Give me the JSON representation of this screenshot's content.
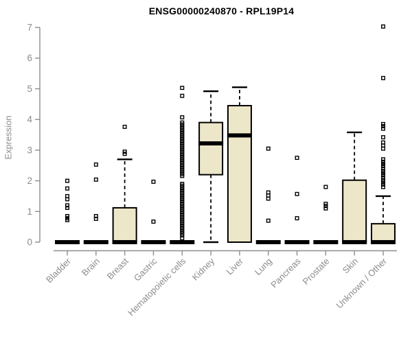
{
  "chart_data": {
    "type": "boxplot",
    "title": "ENSG00000240870 - RPL19P14",
    "ylabel": "Expression",
    "xlabel": "",
    "ylim": [
      0,
      7
    ],
    "yticks": [
      0,
      1,
      2,
      3,
      4,
      5,
      6,
      7
    ],
    "grid": false,
    "legend": "none",
    "categories": [
      "Bladder",
      "Brain",
      "Breast",
      "Gastric",
      "Hematopoietic cells",
      "Kidney",
      "Liver",
      "Lung",
      "Pancreas",
      "Prostate",
      "Skin",
      "Unknown / Other"
    ],
    "boxes": [
      {
        "category": "Bladder",
        "q1": 0,
        "median": 0,
        "q3": 0,
        "whisker_low": 0,
        "whisker_high": 0,
        "outliers": [
          2.0,
          1.75,
          1.5,
          1.4,
          1.2,
          1.12,
          0.85,
          0.78,
          0.72
        ]
      },
      {
        "category": "Brain",
        "q1": 0,
        "median": 0,
        "q3": 0,
        "whisker_low": 0,
        "whisker_high": 0,
        "outliers": [
          2.53,
          2.04,
          0.85,
          0.76
        ]
      },
      {
        "category": "Breast",
        "q1": 0,
        "median": 0,
        "q3": 1.12,
        "whisker_low": 0,
        "whisker_high": 2.7,
        "outliers": [
          3.76,
          2.95,
          2.88
        ]
      },
      {
        "category": "Gastric",
        "q1": 0,
        "median": 0,
        "q3": 0,
        "whisker_low": 0,
        "whisker_high": 0,
        "outliers": [
          1.97,
          0.67
        ]
      },
      {
        "category": "Hematopoietic cells",
        "q1": 0,
        "median": 0,
        "q3": 0,
        "whisker_low": 0,
        "whisker_high": 0,
        "outliers": [
          5.03,
          4.77,
          4.07,
          3.9,
          3.84,
          3.78,
          3.72,
          3.66,
          3.6,
          3.54,
          3.48,
          3.42,
          3.36,
          3.3,
          3.24,
          3.18,
          3.12,
          3.06,
          3.0,
          2.94,
          2.88,
          2.82,
          2.76,
          2.7,
          2.64,
          2.58,
          2.52,
          2.46,
          2.4,
          2.34,
          2.28,
          2.22,
          2.16,
          1.9,
          1.84,
          1.78,
          1.72,
          1.66,
          1.6,
          1.54,
          1.48,
          1.42,
          1.36,
          1.3,
          1.24,
          1.18,
          1.12,
          1.06,
          1.0,
          0.94,
          0.88,
          0.82,
          0.76,
          0.7,
          0.64,
          0.58,
          0.52,
          0.46,
          0.4,
          0.34,
          0.28,
          0.22,
          0.13
        ]
      },
      {
        "category": "Kidney",
        "q1": 2.2,
        "median": 3.22,
        "q3": 3.9,
        "whisker_low": 0,
        "whisker_high": 4.92,
        "outliers": []
      },
      {
        "category": "Liver",
        "q1": 0,
        "median": 3.48,
        "q3": 4.45,
        "whisker_low": 0,
        "whisker_high": 5.05,
        "outliers": []
      },
      {
        "category": "Lung",
        "q1": 0,
        "median": 0,
        "q3": 0,
        "whisker_low": 0,
        "whisker_high": 0,
        "outliers": [
          3.05,
          1.62,
          1.52,
          1.42,
          0.7
        ]
      },
      {
        "category": "Pancreas",
        "q1": 0,
        "median": 0,
        "q3": 0,
        "whisker_low": 0,
        "whisker_high": 0,
        "outliers": [
          2.75,
          1.57,
          0.78
        ]
      },
      {
        "category": "Prostate",
        "q1": 0,
        "median": 0,
        "q3": 0,
        "whisker_low": 0,
        "whisker_high": 0,
        "outliers": [
          1.8,
          1.25,
          1.18,
          1.1
        ]
      },
      {
        "category": "Skin",
        "q1": 0,
        "median": 0,
        "q3": 2.02,
        "whisker_low": 0,
        "whisker_high": 3.58,
        "outliers": []
      },
      {
        "category": "Unknown / Other",
        "q1": 0,
        "median": 0,
        "q3": 0.6,
        "whisker_low": 0,
        "whisker_high": 1.5,
        "outliers": [
          7.03,
          5.35,
          3.85,
          3.78,
          3.7,
          3.42,
          3.25,
          3.15,
          3.05,
          2.7,
          2.62,
          2.55,
          2.48,
          2.4,
          2.32,
          2.25,
          2.18,
          2.1,
          2.02,
          1.95,
          1.88,
          1.8
        ]
      }
    ],
    "colors": {
      "box_fill": "#EDE7C9",
      "box_border": "#000000",
      "median": "#000000",
      "whisker": "#000000",
      "outlier": "#000000",
      "axis": "#8C8C8C",
      "tick_label": "#8C8C8C",
      "title": "#000000",
      "background": "#FFFFFF"
    }
  }
}
